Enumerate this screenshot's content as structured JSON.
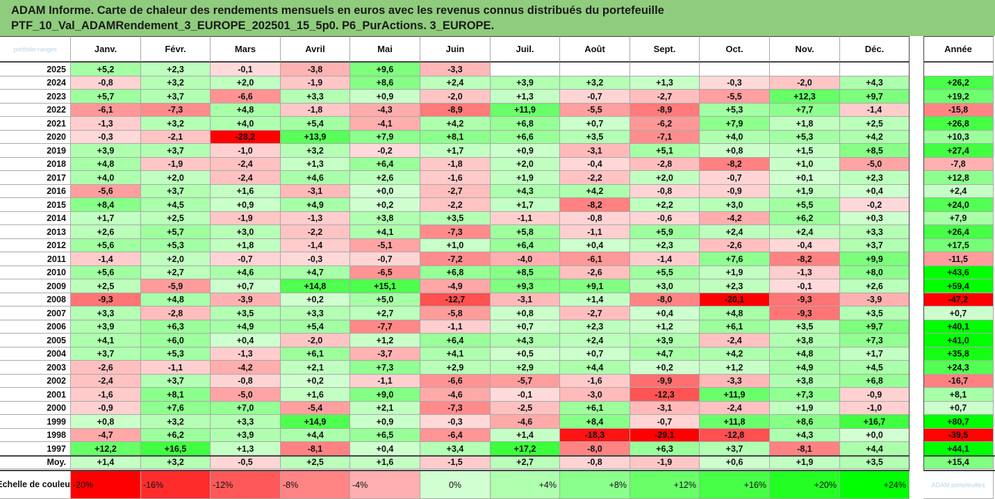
{
  "title_line1": "ADAM Informe. Carte de chaleur des rendements mensuels en euros avec les revenus connus distribués du portefeuille",
  "title_line2": "PTF_10_Val_ADAMRendement_3_EUROPE_202501_15_5p0. P6_PurActions. 3_EUROPE.",
  "corner_watermark": "portfolio-ranges",
  "footer_watermark": "ADAM portefeuilles",
  "chart_data": {
    "type": "heatmap",
    "columns": [
      "Janv.",
      "Févr.",
      "Mars",
      "Avril",
      "Mai",
      "Juin",
      "Juil.",
      "Août",
      "Sept.",
      "Oct.",
      "Nov.",
      "Déc."
    ],
    "annual_header": "Année",
    "rows": [
      {
        "label": "2025",
        "values": [
          5.2,
          2.3,
          -0.1,
          -3.8,
          9.6,
          -3.3,
          null,
          null,
          null,
          null,
          null,
          null
        ],
        "annual": null
      },
      {
        "label": "2024",
        "values": [
          -0.8,
          3.2,
          2.0,
          -1.9,
          8.6,
          2.4,
          3.9,
          3.2,
          1.3,
          -0.3,
          -2.0,
          4.3
        ],
        "annual": 26.2
      },
      {
        "label": "2023",
        "values": [
          5.7,
          3.7,
          -6.6,
          3.3,
          0.9,
          -2.0,
          1.3,
          -0.7,
          -2.7,
          -5.5,
          12.3,
          9.7
        ],
        "annual": 19.2
      },
      {
        "label": "2022",
        "values": [
          -6.1,
          -7.3,
          4.8,
          -1.8,
          -4.3,
          -8.9,
          11.9,
          -5.5,
          -8.9,
          5.3,
          7.7,
          -1.4
        ],
        "annual": -15.8
      },
      {
        "label": "2021",
        "values": [
          -1.3,
          3.2,
          4.0,
          5.4,
          -4.1,
          4.2,
          6.8,
          0.7,
          -6.2,
          7.9,
          1.8,
          2.5
        ],
        "annual": 26.8
      },
      {
        "label": "2020",
        "values": [
          -0.3,
          -2.1,
          -28.2,
          13.9,
          7.9,
          8.1,
          6.6,
          3.5,
          -7.1,
          4.0,
          5.3,
          4.2
        ],
        "annual": 10.3
      },
      {
        "label": "2019",
        "values": [
          3.9,
          3.7,
          -1.0,
          3.2,
          -0.2,
          1.7,
          0.9,
          -3.1,
          5.1,
          0.8,
          1.5,
          8.5
        ],
        "annual": 27.4
      },
      {
        "label": "2018",
        "values": [
          4.8,
          -1.9,
          -2.4,
          1.3,
          6.4,
          -1.8,
          2.0,
          -0.4,
          -2.8,
          -8.2,
          1.0,
          -5.0
        ],
        "annual": -7.8
      },
      {
        "label": "2017",
        "values": [
          4.0,
          2.0,
          -2.4,
          4.6,
          2.6,
          -1.6,
          1.9,
          -2.2,
          2.0,
          -0.7,
          0.1,
          2.3
        ],
        "annual": 12.8
      },
      {
        "label": "2016",
        "values": [
          -5.6,
          3.7,
          1.6,
          -3.1,
          0.0,
          -2.7,
          4.3,
          4.2,
          -0.8,
          -0.9,
          1.9,
          0.4
        ],
        "annual": 2.4
      },
      {
        "label": "2015",
        "values": [
          8.4,
          4.5,
          0.9,
          4.9,
          0.2,
          -2.2,
          1.7,
          -8.2,
          2.2,
          3.0,
          5.5,
          -0.2
        ],
        "annual": 24.0
      },
      {
        "label": "2014",
        "values": [
          1.7,
          2.5,
          -1.9,
          -1.3,
          3.8,
          3.5,
          -1.1,
          -0.8,
          -0.6,
          -4.2,
          6.2,
          0.3
        ],
        "annual": 7.9
      },
      {
        "label": "2013",
        "values": [
          2.6,
          5.7,
          3.0,
          -2.2,
          4.1,
          -7.3,
          5.8,
          -1.1,
          5.9,
          2.4,
          2.4,
          3.3
        ],
        "annual": 26.4
      },
      {
        "label": "2012",
        "values": [
          5.6,
          5.3,
          1.8,
          -1.4,
          -5.1,
          1.0,
          6.4,
          0.4,
          2.3,
          -2.6,
          -0.4,
          3.7
        ],
        "annual": 17.5
      },
      {
        "label": "2011",
        "values": [
          -1.4,
          2.0,
          -0.7,
          -0.3,
          -0.7,
          -7.2,
          -4.0,
          -6.1,
          -1.4,
          7.6,
          -8.2,
          9.9
        ],
        "annual": -11.5
      },
      {
        "label": "2010",
        "values": [
          5.6,
          2.7,
          4.6,
          4.7,
          -6.5,
          6.8,
          8.5,
          -2.6,
          5.5,
          1.9,
          -1.3,
          8.0
        ],
        "annual": 43.6
      },
      {
        "label": "2009",
        "values": [
          2.5,
          -5.9,
          0.7,
          14.8,
          15.1,
          -4.9,
          9.3,
          9.1,
          3.0,
          2.3,
          -0.1,
          2.6
        ],
        "annual": 59.4
      },
      {
        "label": "2008",
        "values": [
          -9.3,
          4.8,
          -3.9,
          0.2,
          5.0,
          -12.7,
          -3.1,
          1.4,
          -8.0,
          -20.1,
          -9.3,
          -3.9
        ],
        "annual": -47.2
      },
      {
        "label": "2007",
        "values": [
          3.3,
          -2.8,
          3.5,
          3.3,
          2.7,
          -5.8,
          0.8,
          -2.7,
          0.4,
          4.8,
          -9.3,
          3.5
        ],
        "annual": 0.7
      },
      {
        "label": "2006",
        "values": [
          3.9,
          6.3,
          4.9,
          5.4,
          -7.7,
          -1.1,
          0.7,
          2.3,
          1.2,
          6.1,
          3.5,
          9.7
        ],
        "annual": 40.1
      },
      {
        "label": "2005",
        "values": [
          4.1,
          6.0,
          0.4,
          -2.0,
          1.2,
          6.4,
          4.3,
          2.4,
          3.9,
          -2.4,
          3.8,
          7.3
        ],
        "annual": 41.0
      },
      {
        "label": "2004",
        "values": [
          3.7,
          5.3,
          -1.3,
          6.1,
          -3.7,
          4.1,
          0.5,
          0.7,
          4.7,
          4.2,
          4.8,
          1.7
        ],
        "annual": 35.8
      },
      {
        "label": "2003",
        "values": [
          -2.6,
          -1.1,
          -4.2,
          2.1,
          7.3,
          2.9,
          2.9,
          4.4,
          0.2,
          1.2,
          4.9,
          4.5
        ],
        "annual": 24.3
      },
      {
        "label": "2002",
        "values": [
          -2.4,
          3.7,
          -0.8,
          0.2,
          -1.1,
          -6.6,
          -5.7,
          -1.6,
          -9.9,
          -3.3,
          3.8,
          6.8
        ],
        "annual": -16.7
      },
      {
        "label": "2001",
        "values": [
          -1.6,
          8.1,
          -5.0,
          1.6,
          9.0,
          -4.6,
          -0.1,
          -3.0,
          -12.3,
          11.9,
          7.3,
          -0.9
        ],
        "annual": 8.1
      },
      {
        "label": "2000",
        "values": [
          -0.9,
          7.6,
          7.0,
          -5.4,
          2.1,
          -7.3,
          -2.5,
          6.1,
          -3.1,
          -2.4,
          1.9,
          -1.0
        ],
        "annual": 0.7
      },
      {
        "label": "1999",
        "values": [
          0.8,
          3.2,
          3.3,
          14.9,
          0.9,
          -0.3,
          -4.6,
          8.4,
          -0.7,
          11.8,
          8.6,
          16.7
        ],
        "annual": 80.7
      },
      {
        "label": "1998",
        "values": [
          -4.7,
          6.2,
          3.9,
          4.4,
          6.5,
          -6.4,
          1.4,
          -18.3,
          -29.1,
          -12.8,
          4.3,
          0.0
        ],
        "annual": -39.5
      },
      {
        "label": "1997",
        "values": [
          12.2,
          16.5,
          1.3,
          -8.1,
          0.4,
          3.4,
          17.2,
          -8.0,
          6.3,
          3.7,
          -8.1,
          4.4
        ],
        "annual": 44.1
      }
    ],
    "average": {
      "label": "Moy.",
      "values": [
        1.4,
        3.2,
        -0.5,
        2.5,
        1.6,
        -1.5,
        2.7,
        -0.8,
        -1.9,
        0.6,
        1.9,
        3.5
      ],
      "annual": 15.4
    },
    "scale_label": "Echelle de couleur",
    "scale_ticks": [
      "-20%",
      "-16%",
      "-12%",
      "-8%",
      "-4%",
      "0%",
      "+4%",
      "+8%",
      "+12%",
      "+16%",
      "+20%",
      "+24%"
    ],
    "scale_values": [
      -20,
      -16,
      -12,
      -8,
      -4,
      0,
      4,
      8,
      12,
      16,
      20,
      24
    ],
    "colors": {
      "negative_max": "#ff0000",
      "positive_max": "#00ff00",
      "neutral": "#ffffff",
      "title_bg": "#8fcc7d"
    },
    "color_range": [
      -20,
      24
    ],
    "annual_color_range": [
      -40,
      40
    ]
  }
}
